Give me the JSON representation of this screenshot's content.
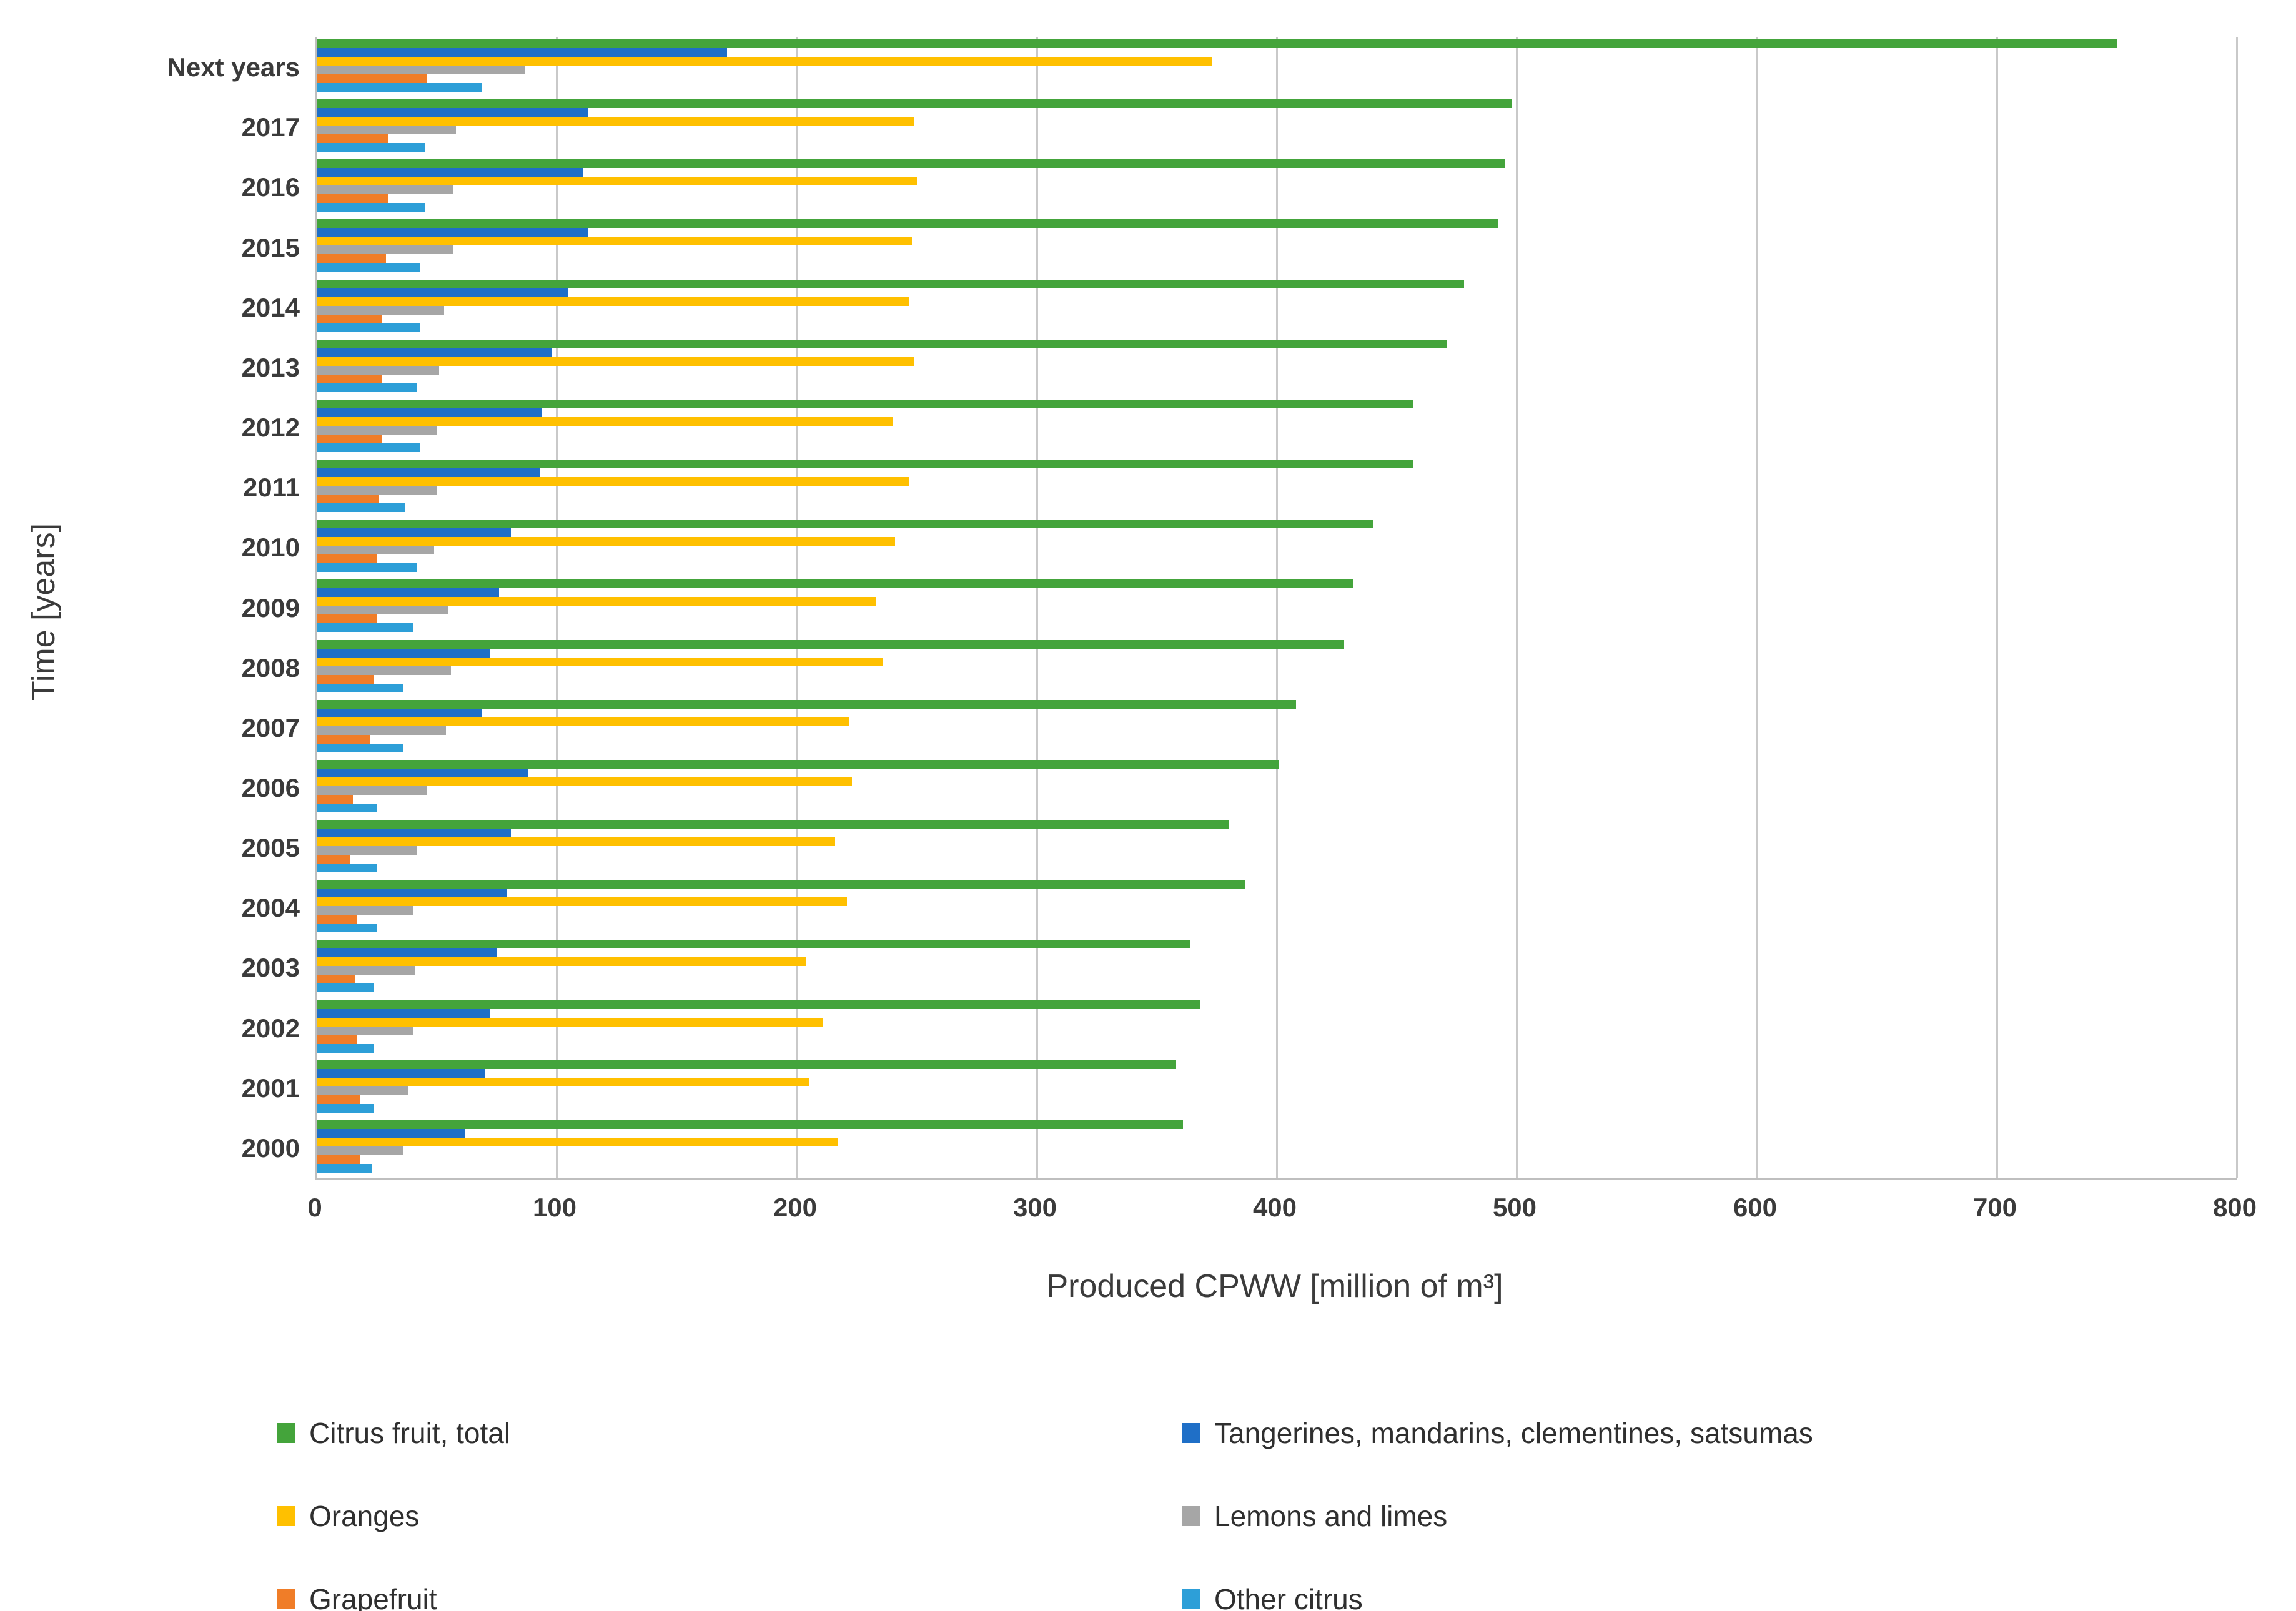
{
  "chart_data": {
    "type": "bar",
    "orientation": "horizontal",
    "title": "",
    "xlabel": "Produced CPWW [million of m³]",
    "ylabel": "Time [years]",
    "xlim": [
      0,
      800
    ],
    "xticks": [
      0,
      100,
      200,
      300,
      400,
      500,
      600,
      700,
      800
    ],
    "grid": "vertical",
    "legend_position": "bottom",
    "categories": [
      "Next years",
      "2017",
      "2016",
      "2015",
      "2014",
      "2013",
      "2012",
      "2011",
      "2010",
      "2009",
      "2008",
      "2007",
      "2006",
      "2005",
      "2004",
      "2003",
      "2002",
      "2001",
      "2000"
    ],
    "series": [
      {
        "name": "Citrus fruit, total",
        "color": "#44a43b",
        "values": [
          750,
          498,
          495,
          492,
          478,
          471,
          457,
          457,
          440,
          432,
          428,
          408,
          401,
          380,
          387,
          364,
          368,
          358,
          361
        ]
      },
      {
        "name": "Tangerines, mandarins, clementines, satsumas",
        "color": "#1f6fc7",
        "values": [
          171,
          113,
          111,
          113,
          105,
          98,
          94,
          93,
          81,
          76,
          72,
          69,
          88,
          81,
          79,
          75,
          72,
          70,
          62
        ]
      },
      {
        "name": "Oranges",
        "color": "#ffc000",
        "values": [
          373,
          249,
          250,
          248,
          247,
          249,
          240,
          247,
          241,
          233,
          236,
          222,
          223,
          216,
          221,
          204,
          211,
          205,
          217
        ]
      },
      {
        "name": "Lemons and limes",
        "color": "#a6a6a6",
        "values": [
          87,
          58,
          57,
          57,
          53,
          51,
          50,
          50,
          49,
          55,
          56,
          54,
          46,
          42,
          40,
          41,
          40,
          38,
          36
        ]
      },
      {
        "name": "Grapefruit",
        "color": "#f07d28",
        "values": [
          46,
          30,
          30,
          29,
          27,
          27,
          27,
          26,
          25,
          25,
          24,
          22,
          15,
          14,
          17,
          16,
          17,
          18,
          18
        ]
      },
      {
        "name": "Other citrus",
        "color": "#2d9fd8",
        "values": [
          69,
          45,
          45,
          43,
          43,
          42,
          43,
          37,
          42,
          40,
          36,
          36,
          25,
          25,
          25,
          24,
          24,
          24,
          23
        ]
      }
    ],
    "legend_columns": [
      [
        {
          "label": "Citrus fruit, total",
          "color": "#44a43b"
        },
        {
          "label": "Oranges",
          "color": "#ffc000"
        },
        {
          "label": "Grapefruit",
          "color": "#f07d28"
        }
      ],
      [
        {
          "label": "Tangerines, mandarins, clementines, satsumas",
          "color": "#1f6fc7"
        },
        {
          "label": "Lemons and limes",
          "color": "#a6a6a6"
        },
        {
          "label": "Other citrus",
          "color": "#2d9fd8"
        }
      ]
    ]
  }
}
